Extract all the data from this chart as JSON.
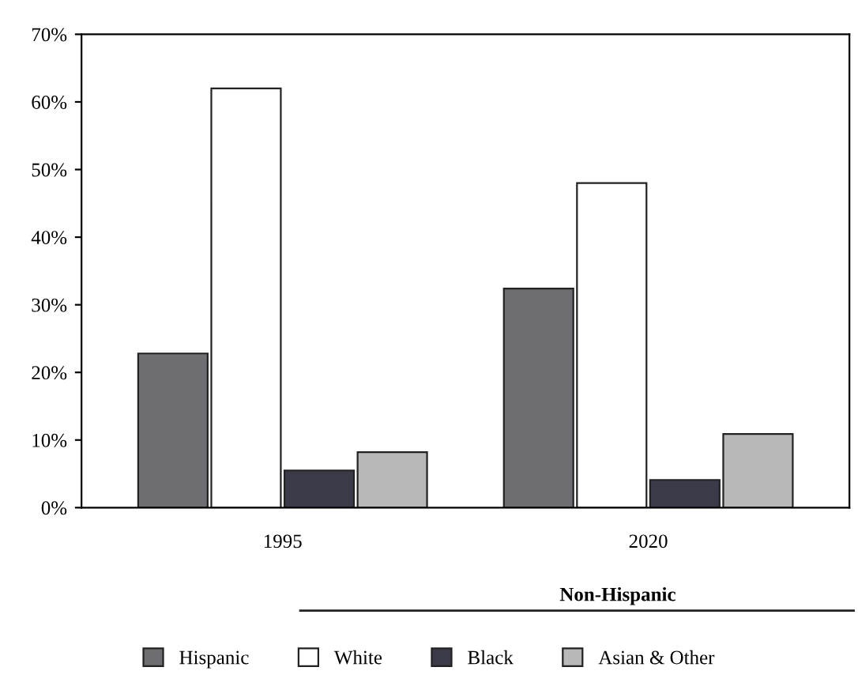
{
  "chart_data": {
    "type": "bar",
    "categories": [
      "1995",
      "2020"
    ],
    "series": [
      {
        "name": "Hispanic",
        "color": "#6e6e72",
        "values": [
          22.8,
          32.4
        ]
      },
      {
        "name": "White",
        "color": "#ffffff",
        "values": [
          62,
          48
        ]
      },
      {
        "name": "Black",
        "color": "#3a3a48",
        "values": [
          5.5,
          4.1
        ]
      },
      {
        "name": "Asian & Other",
        "color": "#b8b8b8",
        "values": [
          8.2,
          10.9
        ]
      }
    ],
    "ylim": [
      0,
      70
    ],
    "yticks": [
      {
        "value": 0,
        "label": "0%"
      },
      {
        "value": 10,
        "label": "10%"
      },
      {
        "value": 20,
        "label": "20%"
      },
      {
        "value": 30,
        "label": "30%"
      },
      {
        "value": 40,
        "label": "40%"
      },
      {
        "value": 50,
        "label": "50%"
      },
      {
        "value": 60,
        "label": "60%"
      },
      {
        "value": 70,
        "label": "70%"
      }
    ],
    "grid": false,
    "legend": "bottom",
    "legend_title": "Non-Hispanic"
  }
}
